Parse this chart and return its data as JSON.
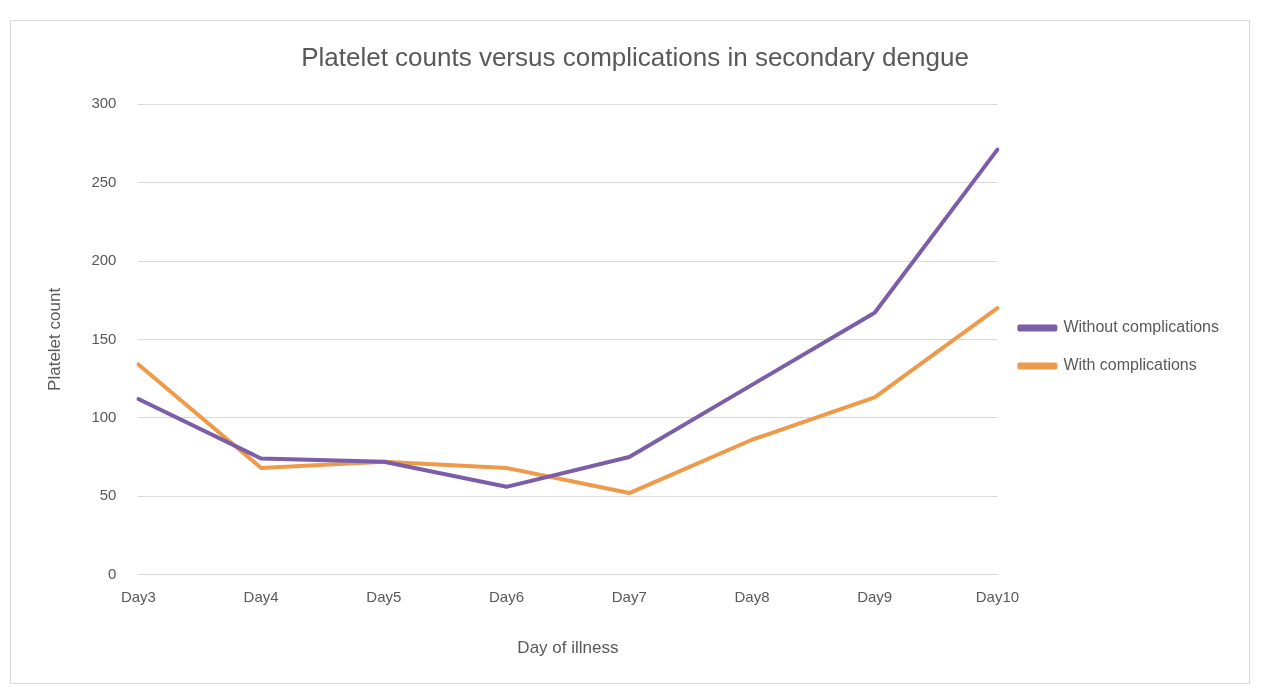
{
  "chart_data": {
    "type": "line",
    "title": "Platelet counts versus complications in secondary dengue",
    "xlabel": "Day of illness",
    "ylabel": "Platelet count",
    "categories": [
      "Day3",
      "Day4",
      "Day5",
      "Day6",
      "Day7",
      "Day8",
      "Day9",
      "Day10"
    ],
    "series": [
      {
        "name": "Without complications",
        "color": "#7b5ea7",
        "values": [
          112,
          74,
          72,
          56,
          75,
          121,
          167,
          271
        ]
      },
      {
        "name": "With complications",
        "color": "#ed9a4a",
        "values": [
          134,
          68,
          72,
          68,
          52,
          86,
          113,
          170
        ]
      }
    ],
    "ylim": [
      0,
      300
    ],
    "yticks": [
      0,
      50,
      100,
      150,
      200,
      250,
      300
    ],
    "grid": "y",
    "legend": "right",
    "marker": "none",
    "line_style": "solid"
  }
}
